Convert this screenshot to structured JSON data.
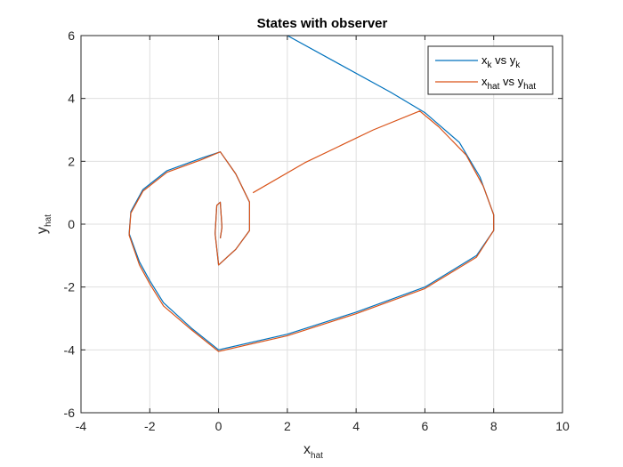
{
  "chart_data": {
    "type": "line",
    "title": "States with observer",
    "xlabel": {
      "base": "x",
      "sub": "hat"
    },
    "ylabel": {
      "base": "y",
      "sub": "hat"
    },
    "xlim": [
      -4,
      10
    ],
    "ylim": [
      -6,
      6
    ],
    "xticks": [
      -4,
      -2,
      0,
      2,
      4,
      6,
      8,
      10
    ],
    "yticks": [
      -6,
      -4,
      -2,
      0,
      2,
      4,
      6
    ],
    "grid": true,
    "legend": {
      "placement": "top-right",
      "entries": [
        {
          "base": "x",
          "sub1": "k",
          "mid": " vs y",
          "sub2": "k"
        },
        {
          "base": "x",
          "sub1": "hat",
          "mid": " vs y",
          "sub2": "hat"
        }
      ]
    },
    "series": [
      {
        "name": "x_k vs y_k",
        "color": "#0072BD",
        "x": [
          2.0,
          3.5,
          5.0,
          6.0,
          7.0,
          7.6,
          8.0,
          8.0,
          7.5,
          6.0,
          4.0,
          2.0,
          0.0,
          -0.8,
          -1.6,
          -2.0,
          -2.3,
          -2.6,
          -2.55,
          -2.2,
          -1.5,
          -0.5,
          0.05,
          0.5,
          0.9,
          0.9,
          0.5,
          0.0,
          -0.1,
          -0.05,
          0.05,
          0.1,
          0.05
        ],
        "y": [
          6.0,
          5.1,
          4.2,
          3.55,
          2.6,
          1.5,
          0.3,
          -0.2,
          -1.0,
          -2.0,
          -2.8,
          -3.5,
          -4.0,
          -3.3,
          -2.5,
          -1.8,
          -1.2,
          -0.3,
          0.4,
          1.1,
          1.7,
          2.1,
          2.3,
          1.6,
          0.7,
          -0.2,
          -0.8,
          -1.3,
          -0.3,
          0.6,
          0.7,
          -0.1,
          -0.45
        ]
      },
      {
        "name": "x_hat vs y_hat",
        "color": "#D95319",
        "x": [
          1.0,
          2.5,
          4.5,
          5.85,
          6.4,
          7.2,
          7.7,
          8.0,
          8.0,
          7.5,
          6.0,
          4.0,
          2.0,
          0.0,
          -0.8,
          -1.6,
          -2.0,
          -2.3,
          -2.6,
          -2.55,
          -2.2,
          -1.5,
          -0.5,
          0.05,
          0.5,
          0.9,
          0.9,
          0.5,
          0.0,
          -0.1,
          -0.05,
          0.05,
          0.1,
          0.05
        ],
        "y": [
          1.0,
          1.95,
          3.0,
          3.6,
          3.1,
          2.2,
          1.2,
          0.3,
          -0.2,
          -1.05,
          -2.05,
          -2.85,
          -3.55,
          -4.05,
          -3.35,
          -2.6,
          -1.9,
          -1.3,
          -0.35,
          0.35,
          1.05,
          1.65,
          2.05,
          2.3,
          1.6,
          0.7,
          -0.2,
          -0.8,
          -1.3,
          -0.3,
          0.6,
          0.7,
          -0.1,
          -0.45
        ]
      }
    ]
  }
}
